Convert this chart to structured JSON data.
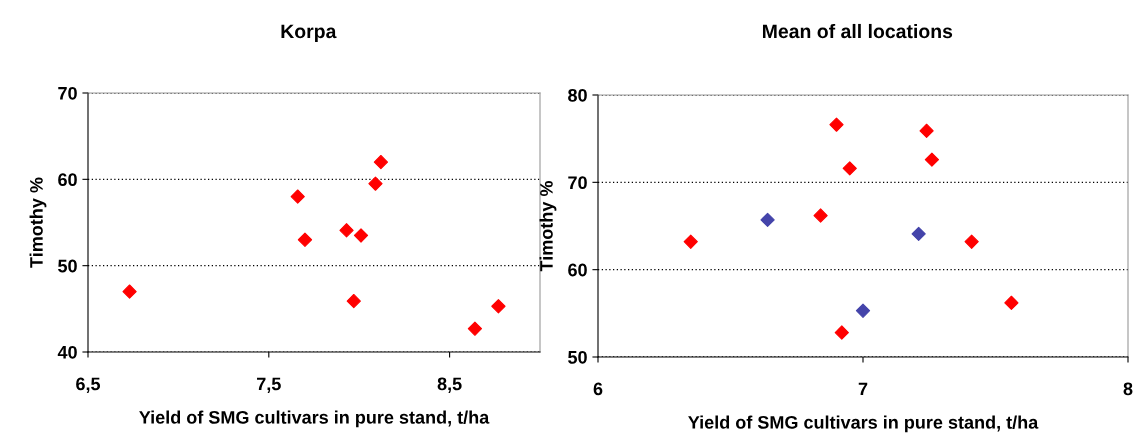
{
  "chart_data": [
    {
      "type": "scatter",
      "title": "Korpa",
      "xlabel": "Yield of SMG cultivars in pure stand, t/ha",
      "ylabel": "Timothy %",
      "xlim": [
        6.5,
        9.0
      ],
      "xticks": [
        {
          "value": 6.5,
          "label": "6,5"
        },
        {
          "value": 7.5,
          "label": "7,5"
        },
        {
          "value": 8.5,
          "label": "8,5"
        }
      ],
      "ylim": [
        40,
        70
      ],
      "yticks": [
        40,
        50,
        60,
        70
      ],
      "grid": "y",
      "marker": "diamond",
      "series": [
        {
          "color": "#ff0000",
          "x": [
            6.73,
            7.66,
            7.7,
            7.93,
            8.01,
            7.97,
            8.09,
            8.12,
            8.64,
            8.77
          ],
          "values": [
            47,
            58,
            53,
            54.1,
            53.5,
            45.9,
            59.5,
            62,
            42.7,
            45.3
          ]
        }
      ]
    },
    {
      "type": "scatter",
      "title": "Mean of all locations",
      "xlabel": "Yield of SMG cultivars in pure stand, t/ha",
      "ylabel": "Timothy %",
      "xlim": [
        6,
        8
      ],
      "xticks": [
        6,
        7,
        8
      ],
      "ylim": [
        50,
        80
      ],
      "yticks": [
        50,
        60,
        70,
        80
      ],
      "grid": "y",
      "marker": "diamond",
      "series": [
        {
          "color": "#ff0000",
          "x": [
            6.35,
            6.9,
            6.95,
            6.84,
            6.92,
            7.24,
            7.26,
            7.41,
            7.56
          ],
          "values": [
            63.2,
            76.6,
            71.6,
            66.2,
            52.8,
            75.9,
            72.6,
            63.2,
            56.2
          ]
        },
        {
          "color": "#4444aa",
          "x": [
            6.64,
            7.0,
            7.21
          ],
          "values": [
            65.7,
            55.3,
            64.1
          ]
        }
      ]
    }
  ]
}
